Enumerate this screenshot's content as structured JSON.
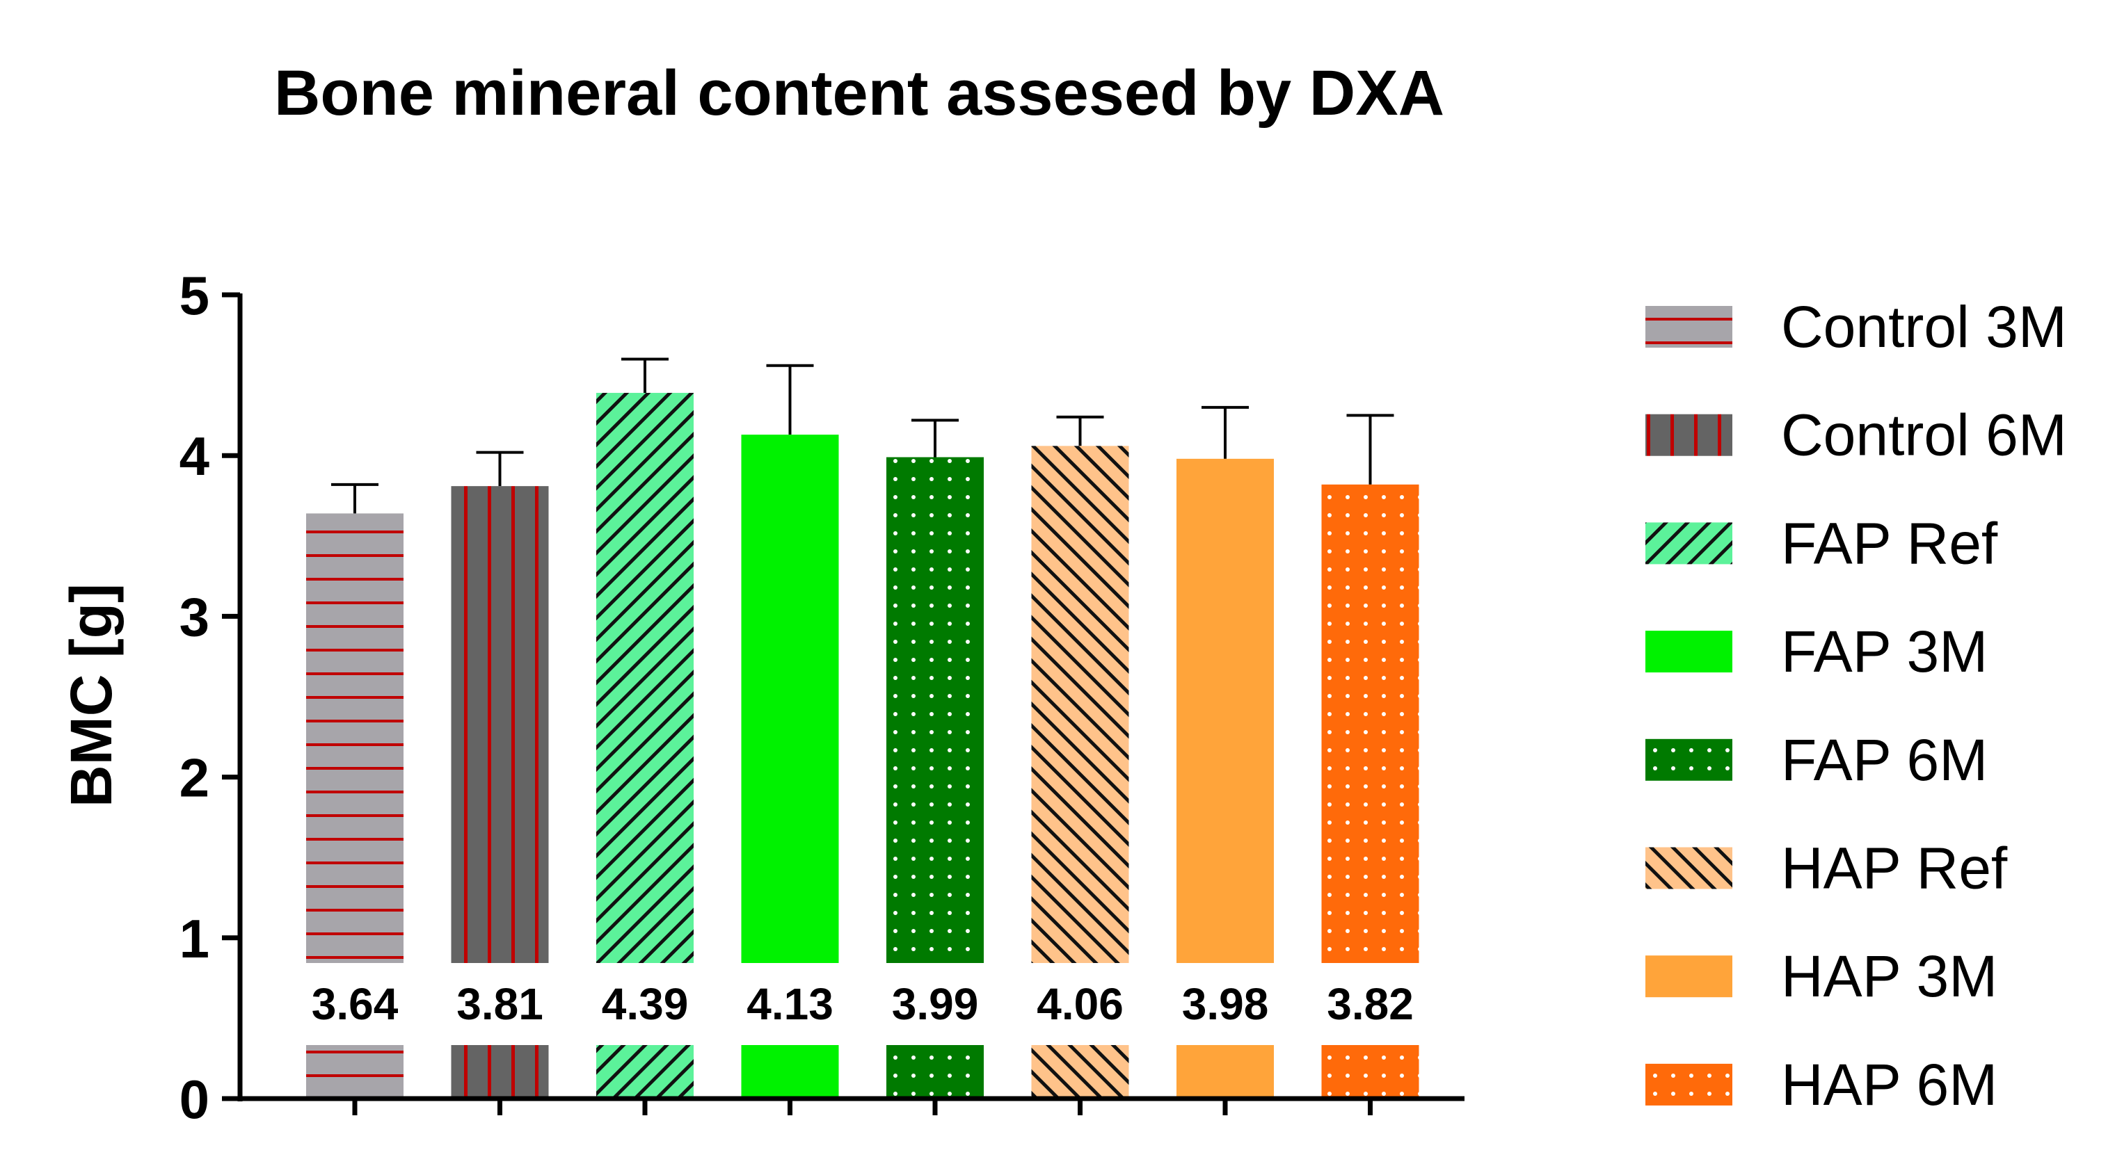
{
  "chart_data": {
    "type": "bar",
    "title": "Bone mineral content assesed by DXA",
    "xlabel": "",
    "ylabel": "BMC [g]",
    "ylim": [
      0,
      5
    ],
    "yticks": [
      "0",
      "1",
      "2",
      "3",
      "4",
      "5"
    ],
    "grid": false,
    "legend_position": "right",
    "categories": [
      "Control 3M",
      "Control 6M",
      "FAP Ref",
      "FAP 3M",
      "FAP 6M",
      "HAP Ref",
      "HAP 3M",
      "HAP 6M"
    ],
    "values": [
      3.64,
      3.81,
      4.39,
      4.13,
      3.99,
      4.06,
      3.98,
      3.82
    ],
    "value_labels": [
      "3.64",
      "3.81",
      "4.39",
      "4.13",
      "3.99",
      "4.06",
      "3.98",
      "3.82"
    ],
    "error_upper": [
      3.82,
      4.02,
      4.6,
      4.56,
      4.22,
      4.24,
      4.3,
      4.25
    ],
    "series_style": [
      {
        "name": "Control 3M",
        "fill": "#a7a5aa",
        "pattern": "horizontal-lines",
        "pattern_color": "#c00000"
      },
      {
        "name": "Control 6M",
        "fill": "#646464",
        "pattern": "vertical-lines",
        "pattern_color": "#c00000"
      },
      {
        "name": "FAP Ref",
        "fill": "#5cf29a",
        "pattern": "diagonal-lines",
        "pattern_color": "#111111"
      },
      {
        "name": "FAP 3M",
        "fill": "#00f200",
        "pattern": "none",
        "pattern_color": ""
      },
      {
        "name": "FAP 6M",
        "fill": "#007a00",
        "pattern": "dots",
        "pattern_color": "#ffffff"
      },
      {
        "name": "HAP Ref",
        "fill": "#ffc38a",
        "pattern": "back-diagonal-lines",
        "pattern_color": "#111111"
      },
      {
        "name": "HAP 3M",
        "fill": "#ffa43a",
        "pattern": "none",
        "pattern_color": ""
      },
      {
        "name": "HAP 6M",
        "fill": "#ff6a0a",
        "pattern": "dots",
        "pattern_color": "#ffffff"
      }
    ]
  }
}
